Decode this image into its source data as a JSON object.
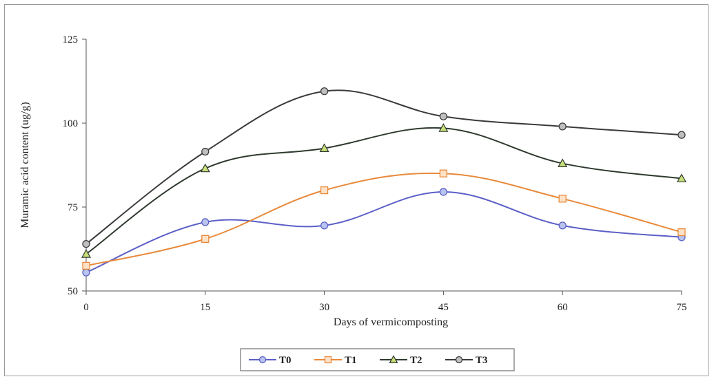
{
  "chart_data": {
    "type": "line",
    "title": "",
    "xlabel": "Days of vermicomposting",
    "ylabel": "Muramic acid content (ug/g)",
    "x": [
      0,
      15,
      30,
      45,
      60,
      75
    ],
    "x_ticks": [
      "0",
      "15",
      "30",
      "45",
      "60",
      "75"
    ],
    "y_ticks": [
      "50",
      "75",
      "100",
      "125"
    ],
    "xlim": [
      0,
      75
    ],
    "ylim": [
      50,
      125
    ],
    "grid": false,
    "legend_position": "bottom",
    "smooth": true,
    "series": [
      {
        "name": "T0",
        "values": [
          55.5,
          70.5,
          69.5,
          79.5,
          69.5,
          66
        ],
        "color": "#5b5fc7",
        "marker": "circle",
        "marker_fill": "#b8c4ee"
      },
      {
        "name": "T1",
        "values": [
          57.5,
          65.5,
          80,
          85,
          77.5,
          67.5
        ],
        "color": "#e8893a",
        "marker": "square",
        "marker_fill": "#fde2c8"
      },
      {
        "name": "T2",
        "values": [
          61,
          86.5,
          92.5,
          98.5,
          88,
          83.5
        ],
        "color": "#2f3a2f",
        "marker": "triangle",
        "marker_fill": "#c9e07a"
      },
      {
        "name": "T3",
        "values": [
          64,
          91.5,
          109.5,
          102,
          99,
          96.5
        ],
        "color": "#3a3a3a",
        "marker": "circle",
        "marker_fill": "#bfbfbf"
      }
    ]
  }
}
